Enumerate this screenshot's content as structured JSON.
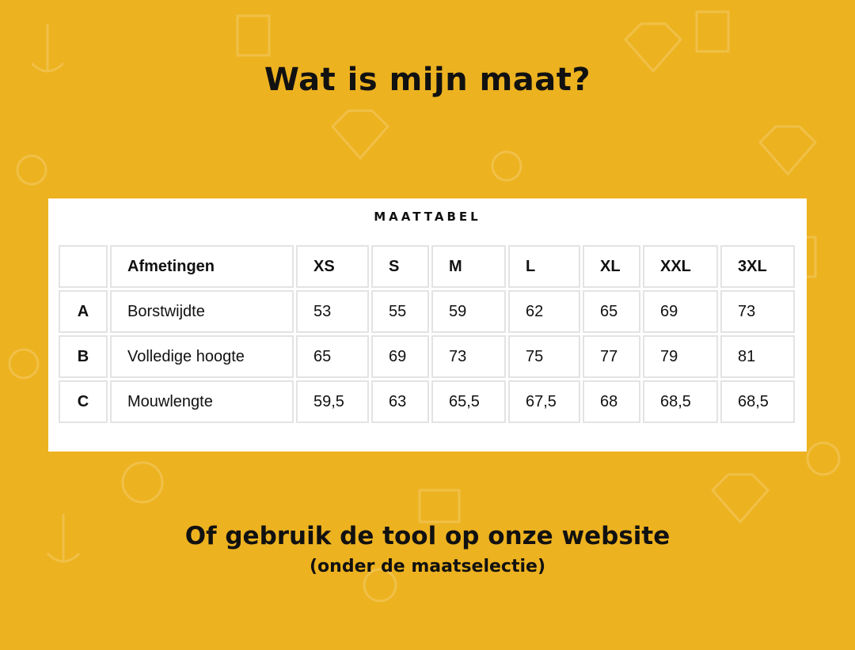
{
  "title": "Wat is mijn maat?",
  "table_title": "MAATTABEL",
  "headers": [
    "",
    "Afmetingen",
    "XS",
    "S",
    "M",
    "L",
    "XL",
    "XXL",
    "3XL"
  ],
  "rows": [
    [
      "A",
      "Borstwijdte",
      "53",
      "55",
      "59",
      "62",
      "65",
      "69",
      "73"
    ],
    [
      "B",
      "Volledige hoogte",
      "65",
      "69",
      "73",
      "75",
      "77",
      "79",
      "81"
    ],
    [
      "C",
      "Mouwlengte",
      "59,5",
      "63",
      "65,5",
      "67,5",
      "68",
      "68,5",
      "68,5"
    ]
  ],
  "footer": {
    "line1": "Of gebruik de tool op onze website",
    "line2": "(onder de maatselectie)"
  },
  "colors": {
    "background": "#edb220",
    "card": "#ffffff",
    "border": "#e3e3e3"
  }
}
